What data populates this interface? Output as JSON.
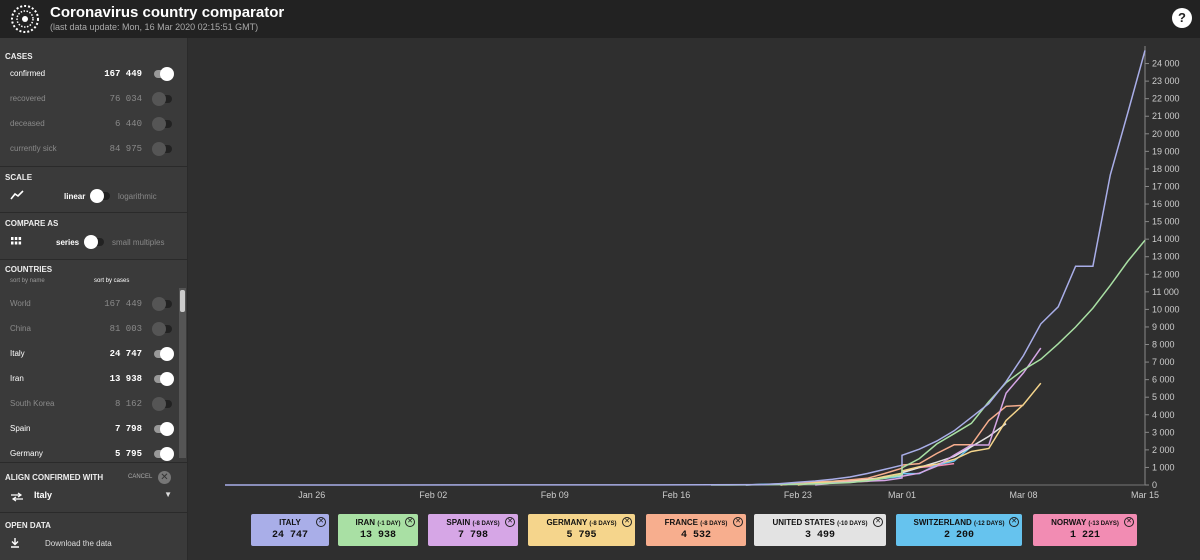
{
  "app": {
    "title": "Coronavirus country comparator",
    "subtitle": "(last data update: Mon, 16 Mar 2020 02:15:51 GMT)",
    "help_label": "?"
  },
  "sidebar": {
    "cases": {
      "title": "CASES",
      "items": [
        {
          "label": "confirmed",
          "value": "167 449",
          "on": true
        },
        {
          "label": "recovered",
          "value": "76 034",
          "on": false
        },
        {
          "label": "deceased",
          "value": "6 440",
          "on": false
        },
        {
          "label": "currently sick",
          "value": "84 975",
          "on": false
        }
      ]
    },
    "scale": {
      "title": "SCALE",
      "left": "linear",
      "right": "logarithmic"
    },
    "compare": {
      "title": "COMPARE AS",
      "left": "series",
      "right": "small multiples"
    },
    "countries": {
      "title": "COUNTRIES",
      "sort_by_name": "sort by name",
      "sort_by_cases": "sort by cases",
      "items": [
        {
          "label": "World",
          "value": "167 449",
          "on": false
        },
        {
          "label": "China",
          "value": "81 003",
          "on": false
        },
        {
          "label": "Italy",
          "value": "24 747",
          "on": true
        },
        {
          "label": "Iran",
          "value": "13 938",
          "on": true
        },
        {
          "label": "South Korea",
          "value": "8 162",
          "on": false
        },
        {
          "label": "Spain",
          "value": "7 798",
          "on": true
        },
        {
          "label": "Germany",
          "value": "5 795",
          "on": true
        }
      ]
    },
    "align": {
      "title": "ALIGN CONFIRMED WITH",
      "cancel": "CANCEL",
      "selected": "Italy"
    },
    "open_data": {
      "title": "OPEN DATA",
      "download": "Download the data"
    }
  },
  "legend": [
    {
      "name": "ITALY",
      "shift": "",
      "value": "24 747",
      "color": "#a9aee8"
    },
    {
      "name": "IRAN",
      "shift": "(-1 DAY)",
      "value": "13 938",
      "color": "#a9e0a4"
    },
    {
      "name": "SPAIN",
      "shift": "(-8 DAYS)",
      "value": "7 798",
      "color": "#d6a6e6"
    },
    {
      "name": "GERMANY",
      "shift": "(-8 DAYS)",
      "value": "5 795",
      "color": "#f5d58c"
    },
    {
      "name": "FRANCE",
      "shift": "(-8 DAYS)",
      "value": "4 532",
      "color": "#f7ae8e"
    },
    {
      "name": "UNITED STATES",
      "shift": "(-10 DAYS)",
      "value": "3 499",
      "color": "#e3e3e3"
    },
    {
      "name": "SWITZERLAND",
      "shift": "(-12 DAYS)",
      "value": "2 200",
      "color": "#66c3ee"
    },
    {
      "name": "NORWAY",
      "shift": "(-13 DAYS)",
      "value": "1 221",
      "color": "#f28cb3"
    }
  ],
  "chart_data": {
    "type": "line",
    "title": "",
    "xlabel": "",
    "ylabel": "",
    "x_ticks": [
      "Jan 26",
      "Feb 02",
      "Feb 09",
      "Feb 16",
      "Feb 23",
      "Mar 01",
      "Mar 08",
      "Mar 15"
    ],
    "y_ticks": [
      0,
      1000,
      2000,
      3000,
      4000,
      5000,
      6000,
      7000,
      8000,
      9000,
      10000,
      11000,
      12000,
      13000,
      14000,
      15000,
      16000,
      17000,
      18000,
      19000,
      20000,
      21000,
      22000,
      23000,
      24000
    ],
    "ylim": [
      0,
      25000
    ],
    "xlim": [
      "Jan 21",
      "Mar 15"
    ],
    "grid": false,
    "series": [
      {
        "name": "ITALY",
        "color": "#a9aee8",
        "points": [
          [
            "Jan 21",
            0
          ],
          [
            "Feb 15",
            3
          ],
          [
            "Feb 21",
            20
          ],
          [
            "Feb 22",
            79
          ],
          [
            "Feb 23",
            155
          ],
          [
            "Feb 24",
            229
          ],
          [
            "Feb 25",
            322
          ],
          [
            "Feb 26",
            453
          ],
          [
            "Feb 27",
            655
          ],
          [
            "Feb 28",
            888
          ],
          [
            "Feb 29",
            1128
          ],
          [
            "Mar 01",
            1694
          ],
          [
            "Mar 02",
            2036
          ],
          [
            "Mar 03",
            2502
          ],
          [
            "Mar 04",
            3089
          ],
          [
            "Mar 05",
            3858
          ],
          [
            "Mar 06",
            4636
          ],
          [
            "Mar 07",
            5883
          ],
          [
            "Mar 08",
            7375
          ],
          [
            "Mar 09",
            9172
          ],
          [
            "Mar 10",
            10149
          ],
          [
            "Mar 11",
            12462
          ],
          [
            "Mar 12",
            12462
          ],
          [
            "Mar 13",
            17660
          ],
          [
            "Mar 14",
            21157
          ],
          [
            "Mar 15",
            24747
          ]
        ]
      },
      {
        "name": "IRAN",
        "color": "#a9e0a4",
        "points": [
          [
            "Feb 18",
            0
          ],
          [
            "Feb 19",
            2
          ],
          [
            "Feb 20",
            5
          ],
          [
            "Feb 21",
            18
          ],
          [
            "Feb 22",
            28
          ],
          [
            "Feb 23",
            43
          ],
          [
            "Feb 24",
            61
          ],
          [
            "Feb 25",
            95
          ],
          [
            "Feb 26",
            139
          ],
          [
            "Feb 27",
            245
          ],
          [
            "Feb 28",
            388
          ],
          [
            "Feb 29",
            593
          ],
          [
            "Mar 01",
            978
          ],
          [
            "Mar 02",
            1501
          ],
          [
            "Mar 03",
            2336
          ],
          [
            "Mar 04",
            2922
          ],
          [
            "Mar 05",
            3513
          ],
          [
            "Mar 06",
            4747
          ],
          [
            "Mar 07",
            5823
          ],
          [
            "Mar 08",
            6566
          ],
          [
            "Mar 09",
            7161
          ],
          [
            "Mar 10",
            8042
          ],
          [
            "Mar 11",
            9000
          ],
          [
            "Mar 12",
            10075
          ],
          [
            "Mar 13",
            11364
          ],
          [
            "Mar 14",
            12729
          ],
          [
            "Mar 15",
            13938
          ]
        ]
      },
      {
        "name": "SPAIN",
        "color": "#d6a6e6",
        "points": [
          [
            "Feb 24",
            0
          ],
          [
            "Feb 25",
            120
          ],
          [
            "Feb 26",
            165
          ],
          [
            "Feb 27",
            222
          ],
          [
            "Feb 28",
            259
          ],
          [
            "Feb 29",
            400
          ],
          [
            "Mar 01",
            500
          ],
          [
            "Mar 02",
            673
          ],
          [
            "Mar 03",
            1073
          ],
          [
            "Mar 04",
            1695
          ],
          [
            "Mar 05",
            2277
          ],
          [
            "Mar 06",
            2277
          ],
          [
            "Mar 07",
            5232
          ],
          [
            "Mar 08",
            6391
          ],
          [
            "Mar 09",
            7798
          ]
        ]
      },
      {
        "name": "GERMANY",
        "color": "#f5d58c",
        "points": [
          [
            "Feb 23",
            0
          ],
          [
            "Feb 24",
            130
          ],
          [
            "Feb 25",
            159
          ],
          [
            "Feb 26",
            196
          ],
          [
            "Feb 27",
            262
          ],
          [
            "Feb 28",
            482
          ],
          [
            "Feb 29",
            670
          ],
          [
            "Mar 01",
            799
          ],
          [
            "Mar 02",
            1040
          ],
          [
            "Mar 03",
            1176
          ],
          [
            "Mar 04",
            1457
          ],
          [
            "Mar 05",
            1908
          ],
          [
            "Mar 06",
            2078
          ],
          [
            "Mar 07",
            3675
          ],
          [
            "Mar 08",
            4585
          ],
          [
            "Mar 09",
            5795
          ]
        ]
      },
      {
        "name": "FRANCE",
        "color": "#f7ae8e",
        "points": [
          [
            "Feb 22",
            0
          ],
          [
            "Feb 23",
            100
          ],
          [
            "Feb 24",
            191
          ],
          [
            "Feb 25",
            204
          ],
          [
            "Feb 26",
            288
          ],
          [
            "Feb 27",
            380
          ],
          [
            "Feb 28",
            656
          ],
          [
            "Feb 29",
            957
          ],
          [
            "Mar 01",
            1134
          ],
          [
            "Mar 02",
            1217
          ],
          [
            "Mar 03",
            1792
          ],
          [
            "Mar 04",
            2289
          ],
          [
            "Mar 05",
            2289
          ],
          [
            "Mar 06",
            3672
          ],
          [
            "Mar 07",
            4480
          ],
          [
            "Mar 08",
            4532
          ]
        ]
      },
      {
        "name": "UNITED STATES",
        "color": "#e3e3e3",
        "points": [
          [
            "Feb 22",
            0
          ],
          [
            "Feb 23",
            100
          ],
          [
            "Feb 24",
            124
          ],
          [
            "Feb 25",
            158
          ],
          [
            "Feb 26",
            221
          ],
          [
            "Feb 27",
            319
          ],
          [
            "Feb 28",
            435
          ],
          [
            "Feb 29",
            541
          ],
          [
            "Mar 01",
            704
          ],
          [
            "Mar 02",
            994
          ],
          [
            "Mar 03",
            1301
          ],
          [
            "Mar 04",
            1630
          ],
          [
            "Mar 05",
            2183
          ],
          [
            "Mar 06",
            2770
          ],
          [
            "Mar 07",
            3499
          ]
        ]
      },
      {
        "name": "SWITZERLAND",
        "color": "#66c3ee",
        "points": [
          [
            "Feb 20",
            0
          ],
          [
            "Feb 21",
            42
          ],
          [
            "Feb 22",
            56
          ],
          [
            "Feb 23",
            90
          ],
          [
            "Feb 24",
            114
          ],
          [
            "Feb 25",
            214
          ],
          [
            "Feb 26",
            268
          ],
          [
            "Feb 27",
            337
          ],
          [
            "Feb 28",
            374
          ],
          [
            "Feb 29",
            491
          ],
          [
            "Mar 01",
            652
          ],
          [
            "Mar 02",
            652
          ],
          [
            "Mar 03",
            1139
          ],
          [
            "Mar 04",
            1359
          ],
          [
            "Mar 05",
            2200
          ]
        ]
      },
      {
        "name": "NORWAY",
        "color": "#f28cb3",
        "points": [
          [
            "Feb 20",
            0
          ],
          [
            "Feb 21",
            32
          ],
          [
            "Feb 22",
            56
          ],
          [
            "Feb 23",
            87
          ],
          [
            "Feb 24",
            108
          ],
          [
            "Feb 25",
            147
          ],
          [
            "Feb 26",
            176
          ],
          [
            "Feb 27",
            205
          ],
          [
            "Feb 28",
            400
          ],
          [
            "Feb 29",
            598
          ],
          [
            "Mar 01",
            702
          ],
          [
            "Mar 02",
            996
          ],
          [
            "Mar 03",
            1090
          ],
          [
            "Mar 04",
            1221
          ]
        ]
      }
    ]
  }
}
